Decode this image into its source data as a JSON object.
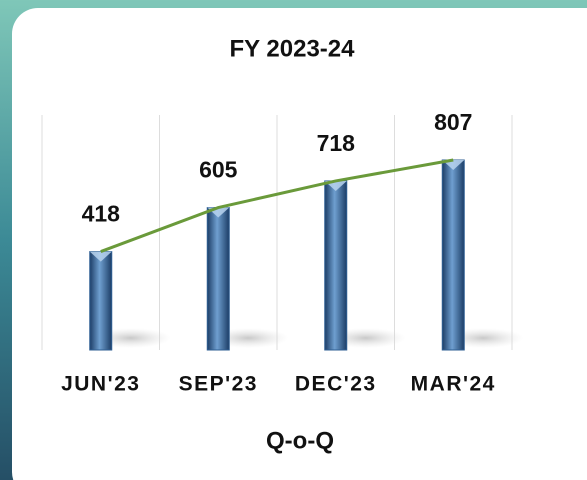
{
  "chart_data": {
    "type": "bar",
    "title": "FY 2023-24",
    "x_label": "Q-o-Q",
    "categories": [
      "JUN'23",
      "SEP'23",
      "DEC'23",
      "MAR'24"
    ],
    "values": [
      418,
      605,
      718,
      807
    ],
    "color": "#2f5f93",
    "line_color": "#6a9a3a",
    "trend_line": true,
    "grid": true
  }
}
